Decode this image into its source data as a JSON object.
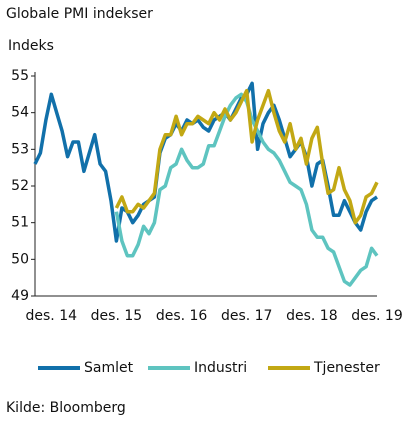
{
  "chart_data": {
    "type": "line",
    "title": "Globale PMI indekser",
    "y_label": "Indeks",
    "source": "Kilde: Bloomberg",
    "categories": [
      null,
      null,
      null,
      "des. 14",
      null,
      null,
      null,
      null,
      null,
      null,
      null,
      null,
      null,
      null,
      null,
      "des. 15",
      null,
      null,
      null,
      null,
      null,
      null,
      null,
      null,
      null,
      null,
      null,
      "des. 16",
      null,
      null,
      null,
      null,
      null,
      null,
      null,
      null,
      null,
      null,
      null,
      "des. 17",
      null,
      null,
      null,
      null,
      null,
      null,
      null,
      null,
      null,
      null,
      null,
      "des. 18",
      null,
      null,
      null,
      null,
      null,
      null,
      null,
      null,
      null,
      null,
      null,
      "des. 19"
    ],
    "ylim": [
      49,
      55
    ],
    "yticks": [
      49,
      50,
      51,
      52,
      53,
      54,
      55
    ],
    "series": [
      {
        "name": "Samlet",
        "color": "#1170aa",
        "values": [
          52.6,
          52.9,
          53.8,
          54.5,
          54.0,
          53.5,
          52.8,
          53.2,
          53.2,
          52.4,
          52.9,
          53.4,
          52.6,
          52.4,
          51.6,
          50.5,
          51.4,
          51.3,
          51.0,
          51.2,
          51.5,
          51.6,
          51.7,
          52.9,
          53.3,
          53.4,
          53.7,
          53.5,
          53.8,
          53.7,
          53.8,
          53.6,
          53.5,
          53.8,
          53.9,
          54.0,
          53.8,
          54.1,
          54.4,
          54.5,
          54.8,
          53.0,
          53.7,
          54.0,
          54.2,
          53.8,
          53.3,
          52.8,
          53.0,
          53.2,
          52.8,
          52.0,
          52.6,
          52.7,
          52.0,
          51.2,
          51.2,
          51.6,
          51.3,
          51.0,
          50.8,
          51.3,
          51.6,
          51.7
        ]
      },
      {
        "name": "Industri",
        "color": "#5ec4c0",
        "values": [
          null,
          null,
          null,
          null,
          null,
          null,
          null,
          null,
          null,
          null,
          null,
          null,
          null,
          null,
          null,
          51.3,
          50.5,
          50.1,
          50.1,
          50.4,
          50.9,
          50.7,
          51.0,
          51.9,
          52.0,
          52.5,
          52.6,
          53.0,
          52.7,
          52.5,
          52.5,
          52.6,
          53.1,
          53.1,
          53.5,
          53.9,
          54.2,
          54.4,
          54.5,
          54.3,
          53.8,
          53.5,
          53.2,
          53.0,
          52.9,
          52.7,
          52.4,
          52.1,
          52.0,
          51.9,
          51.5,
          50.8,
          50.6,
          50.6,
          50.3,
          50.2,
          49.8,
          49.4,
          49.3,
          49.5,
          49.7,
          49.8,
          50.3,
          50.1
        ]
      },
      {
        "name": "Tjenester",
        "color": "#c2a814",
        "values": [
          null,
          null,
          null,
          null,
          null,
          null,
          null,
          null,
          null,
          null,
          null,
          null,
          null,
          null,
          null,
          51.4,
          51.7,
          51.3,
          51.3,
          51.5,
          51.4,
          51.6,
          51.8,
          53.0,
          53.4,
          53.4,
          53.9,
          53.4,
          53.7,
          53.7,
          53.9,
          53.8,
          53.7,
          54.0,
          53.8,
          54.1,
          53.8,
          54.0,
          54.3,
          54.6,
          53.2,
          53.8,
          54.2,
          54.6,
          54.0,
          53.5,
          53.2,
          53.7,
          53.0,
          53.3,
          52.6,
          53.3,
          53.6,
          52.6,
          51.8,
          51.9,
          52.5,
          51.9,
          51.6,
          51.0,
          51.2,
          51.7,
          51.8,
          52.1
        ]
      }
    ]
  }
}
